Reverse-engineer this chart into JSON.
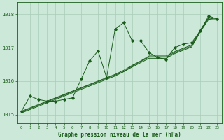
{
  "title": "Graphe pression niveau de la mer (hPa)",
  "bg_color": "#cbe8d8",
  "line_color": "#1a5c1a",
  "grid_color": "#a8ccb8",
  "xlim": [
    -0.5,
    23.5
  ],
  "ylim": [
    1014.75,
    1018.35
  ],
  "yticks": [
    1015,
    1016,
    1017,
    1018
  ],
  "xticks": [
    0,
    1,
    2,
    3,
    4,
    5,
    6,
    7,
    8,
    9,
    10,
    11,
    12,
    13,
    14,
    15,
    16,
    17,
    18,
    19,
    20,
    21,
    22,
    23
  ],
  "main_series": [
    1015.1,
    1015.55,
    1015.45,
    1015.4,
    1015.4,
    1015.45,
    1015.5,
    1016.05,
    1016.6,
    1016.9,
    1016.1,
    1017.55,
    1017.75,
    1017.2,
    1017.2,
    1016.85,
    1016.7,
    1016.65,
    1017.0,
    1017.1,
    1017.15,
    1017.5,
    1017.95,
    1017.85
  ],
  "trend1": [
    1015.08,
    1015.18,
    1015.28,
    1015.38,
    1015.48,
    1015.58,
    1015.68,
    1015.78,
    1015.88,
    1015.98,
    1016.08,
    1016.18,
    1016.28,
    1016.45,
    1016.58,
    1016.72,
    1016.72,
    1016.72,
    1016.85,
    1016.95,
    1017.05,
    1017.5,
    1017.88,
    1017.85
  ],
  "trend2": [
    1015.05,
    1015.15,
    1015.25,
    1015.35,
    1015.45,
    1015.55,
    1015.65,
    1015.75,
    1015.85,
    1015.95,
    1016.05,
    1016.15,
    1016.28,
    1016.42,
    1016.55,
    1016.68,
    1016.68,
    1016.68,
    1016.82,
    1016.92,
    1017.02,
    1017.47,
    1017.85,
    1017.82
  ],
  "trend3": [
    1015.1,
    1015.2,
    1015.3,
    1015.4,
    1015.5,
    1015.6,
    1015.7,
    1015.8,
    1015.9,
    1016.0,
    1016.1,
    1016.2,
    1016.32,
    1016.47,
    1016.6,
    1016.75,
    1016.75,
    1016.75,
    1016.88,
    1016.98,
    1017.08,
    1017.52,
    1017.9,
    1017.88
  ]
}
